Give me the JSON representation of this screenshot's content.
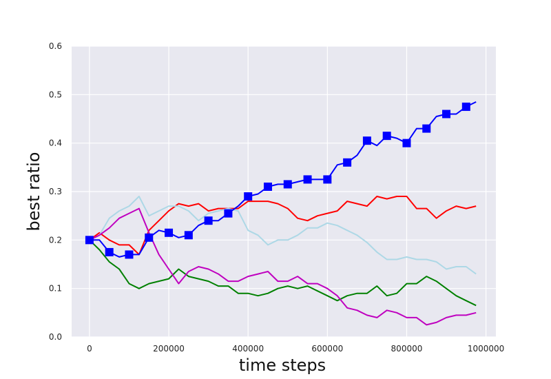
{
  "chart_data": {
    "type": "line",
    "title": "",
    "xlabel": "time steps",
    "ylabel": "best ratio",
    "xlim": [
      -45000,
      1025000
    ],
    "ylim": [
      0,
      0.6
    ],
    "xticks": [
      0,
      200000,
      400000,
      600000,
      800000,
      1000000
    ],
    "xtick_labels": [
      "0",
      "200000",
      "400000",
      "600000",
      "800000",
      "1000000"
    ],
    "yticks": [
      0.0,
      0.1,
      0.2,
      0.3,
      0.4,
      0.5,
      0.6
    ],
    "ytick_labels": [
      "0.0",
      "0.1",
      "0.2",
      "0.3",
      "0.4",
      "0.5",
      "0.6"
    ],
    "grid": true,
    "background": "#e8e8f0",
    "grid_color": "#ffffff",
    "x": [
      0,
      25000,
      50000,
      75000,
      100000,
      125000,
      150000,
      175000,
      200000,
      225000,
      250000,
      275000,
      300000,
      325000,
      350000,
      375000,
      400000,
      425000,
      450000,
      475000,
      500000,
      525000,
      550000,
      575000,
      600000,
      625000,
      650000,
      675000,
      700000,
      725000,
      750000,
      775000,
      800000,
      825000,
      850000,
      875000,
      900000,
      925000,
      950000,
      975000
    ],
    "series": [
      {
        "color": "#0000ff",
        "marker": "square",
        "values": [
          0.2,
          0.2,
          0.175,
          0.165,
          0.17,
          0.17,
          0.205,
          0.22,
          0.215,
          0.205,
          0.21,
          0.23,
          0.24,
          0.24,
          0.255,
          0.27,
          0.29,
          0.295,
          0.31,
          0.315,
          0.315,
          0.32,
          0.325,
          0.325,
          0.325,
          0.355,
          0.36,
          0.375,
          0.405,
          0.395,
          0.415,
          0.41,
          0.4,
          0.43,
          0.43,
          0.455,
          0.46,
          0.46,
          0.475,
          0.485
        ]
      },
      {
        "color": "#ff0000",
        "values": [
          0.2,
          0.215,
          0.2,
          0.19,
          0.19,
          0.17,
          0.22,
          0.24,
          0.26,
          0.275,
          0.27,
          0.275,
          0.26,
          0.265,
          0.265,
          0.265,
          0.28,
          0.28,
          0.28,
          0.275,
          0.265,
          0.245,
          0.24,
          0.25,
          0.255,
          0.26,
          0.28,
          0.275,
          0.27,
          0.29,
          0.285,
          0.29,
          0.29,
          0.265,
          0.265,
          0.245,
          0.26,
          0.27,
          0.265,
          0.27
        ]
      },
      {
        "color": "#add8e6",
        "values": [
          0.2,
          0.21,
          0.245,
          0.26,
          0.27,
          0.29,
          0.25,
          0.26,
          0.27,
          0.27,
          0.26,
          0.24,
          0.255,
          0.26,
          0.265,
          0.26,
          0.22,
          0.21,
          0.19,
          0.2,
          0.2,
          0.21,
          0.225,
          0.225,
          0.235,
          0.23,
          0.22,
          0.21,
          0.195,
          0.175,
          0.16,
          0.16,
          0.165,
          0.16,
          0.16,
          0.155,
          0.14,
          0.145,
          0.145,
          0.13
        ]
      },
      {
        "color": "#008000",
        "values": [
          0.2,
          0.18,
          0.155,
          0.14,
          0.11,
          0.1,
          0.11,
          0.115,
          0.12,
          0.14,
          0.125,
          0.12,
          0.115,
          0.105,
          0.105,
          0.09,
          0.09,
          0.085,
          0.09,
          0.1,
          0.105,
          0.1,
          0.105,
          0.095,
          0.085,
          0.075,
          0.085,
          0.09,
          0.09,
          0.105,
          0.085,
          0.09,
          0.11,
          0.11,
          0.125,
          0.115,
          0.1,
          0.085,
          0.075,
          0.065
        ]
      },
      {
        "color": "#bf00bf",
        "values": [
          0.2,
          0.21,
          0.225,
          0.245,
          0.255,
          0.265,
          0.215,
          0.17,
          0.14,
          0.11,
          0.135,
          0.145,
          0.14,
          0.13,
          0.115,
          0.115,
          0.125,
          0.13,
          0.135,
          0.115,
          0.115,
          0.125,
          0.11,
          0.11,
          0.1,
          0.085,
          0.06,
          0.055,
          0.045,
          0.04,
          0.055,
          0.05,
          0.04,
          0.04,
          0.025,
          0.03,
          0.04,
          0.045,
          0.045,
          0.05
        ]
      }
    ]
  }
}
